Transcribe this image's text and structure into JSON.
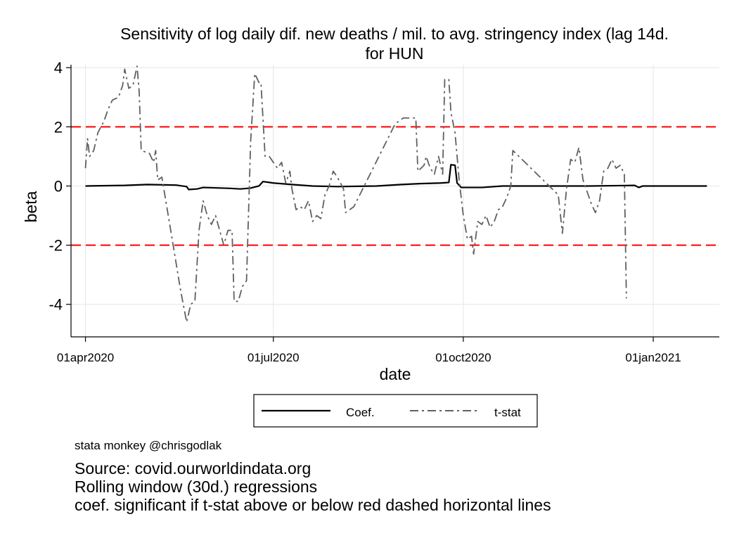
{
  "chart_data": {
    "type": "line",
    "title_lines": [
      "Sensitivity of log daily dif. new deaths / mil. to avg. stringency index (lag 14d.",
      "for HUN"
    ],
    "xlabel": "date",
    "ylabel": "beta",
    "x_tick_labels": [
      "01apr2020",
      "01jul2020",
      "01oct2020",
      "01jan2021"
    ],
    "x_ticks": [
      "2020-04-01",
      "2020-07-01",
      "2020-10-01",
      "2021-01-01"
    ],
    "xlim": [
      "2020-03-25",
      "2021-02-02"
    ],
    "y_ticks": [
      -4,
      -2,
      0,
      2,
      4
    ],
    "y_tick_labels": [
      "-4",
      "-2",
      "0",
      "2",
      "4"
    ],
    "ylim": [
      -5.1,
      4.1
    ],
    "grid": true,
    "reference_lines": [
      {
        "y": 2,
        "color": "#ff0000",
        "style": "dashed"
      },
      {
        "y": -2,
        "color": "#ff0000",
        "style": "dashed"
      }
    ],
    "legend": {
      "position": "bottom",
      "entries": [
        "Coef.",
        "t-stat"
      ]
    },
    "series": [
      {
        "name": "Coef.",
        "color": "#000000",
        "style": "solid",
        "points": [
          [
            "2020-04-01",
            0.0
          ],
          [
            "2020-04-20",
            0.02
          ],
          [
            "2020-05-01",
            0.05
          ],
          [
            "2020-05-15",
            0.03
          ],
          [
            "2020-05-20",
            -0.02
          ],
          [
            "2020-05-21",
            -0.12
          ],
          [
            "2020-05-25",
            -0.1
          ],
          [
            "2020-05-28",
            -0.05
          ],
          [
            "2020-06-10",
            -0.08
          ],
          [
            "2020-06-15",
            -0.1
          ],
          [
            "2020-06-20",
            -0.07
          ],
          [
            "2020-06-24",
            0.0
          ],
          [
            "2020-06-26",
            0.15
          ],
          [
            "2020-07-01",
            0.1
          ],
          [
            "2020-07-10",
            0.05
          ],
          [
            "2020-07-20",
            0.0
          ],
          [
            "2020-08-01",
            -0.02
          ],
          [
            "2020-08-20",
            0.0
          ],
          [
            "2020-09-01",
            0.05
          ],
          [
            "2020-09-10",
            0.08
          ],
          [
            "2020-09-20",
            0.1
          ],
          [
            "2020-09-24",
            0.12
          ],
          [
            "2020-09-25",
            0.72
          ],
          [
            "2020-09-27",
            0.7
          ],
          [
            "2020-09-28",
            0.1
          ],
          [
            "2020-09-30",
            -0.05
          ],
          [
            "2020-10-10",
            -0.05
          ],
          [
            "2020-10-20",
            0.0
          ],
          [
            "2020-11-01",
            0.0
          ],
          [
            "2020-12-01",
            0.0
          ],
          [
            "2020-12-23",
            0.02
          ],
          [
            "2020-12-25",
            -0.05
          ],
          [
            "2020-12-27",
            0.0
          ],
          [
            "2021-01-27",
            0.0
          ]
        ]
      },
      {
        "name": "t-stat",
        "color": "#606060",
        "style": "dashdot",
        "points": [
          [
            "2020-04-01",
            0.6
          ],
          [
            "2020-04-02",
            1.6
          ],
          [
            "2020-04-03",
            1.0
          ],
          [
            "2020-04-05",
            1.2
          ],
          [
            "2020-04-07",
            1.8
          ],
          [
            "2020-04-10",
            2.2
          ],
          [
            "2020-04-12",
            2.6
          ],
          [
            "2020-04-14",
            2.9
          ],
          [
            "2020-04-17",
            3.0
          ],
          [
            "2020-04-19",
            3.4
          ],
          [
            "2020-04-20",
            3.95
          ],
          [
            "2020-04-22",
            3.3
          ],
          [
            "2020-04-24",
            3.4
          ],
          [
            "2020-04-26",
            4.05
          ],
          [
            "2020-04-27",
            3.2
          ],
          [
            "2020-04-28",
            1.2
          ],
          [
            "2020-05-02",
            1.1
          ],
          [
            "2020-05-04",
            0.8
          ],
          [
            "2020-05-05",
            1.2
          ],
          [
            "2020-05-06",
            0.2
          ],
          [
            "2020-05-08",
            0.3
          ],
          [
            "2020-05-13",
            -1.8
          ],
          [
            "2020-05-17",
            -3.5
          ],
          [
            "2020-05-20",
            -4.6
          ],
          [
            "2020-05-22",
            -4.0
          ],
          [
            "2020-05-24",
            -3.9
          ],
          [
            "2020-05-26",
            -1.5
          ],
          [
            "2020-05-28",
            -0.5
          ],
          [
            "2020-05-30",
            -1.0
          ],
          [
            "2020-06-01",
            -1.3
          ],
          [
            "2020-06-03",
            -1.0
          ],
          [
            "2020-06-05",
            -1.5
          ],
          [
            "2020-06-07",
            -2.0
          ],
          [
            "2020-06-09",
            -1.5
          ],
          [
            "2020-06-11",
            -1.5
          ],
          [
            "2020-06-12",
            -3.9
          ],
          [
            "2020-06-14",
            -3.9
          ],
          [
            "2020-06-16",
            -3.4
          ],
          [
            "2020-06-18",
            -3.2
          ],
          [
            "2020-06-20",
            1.5
          ],
          [
            "2020-06-22",
            3.8
          ],
          [
            "2020-06-24",
            3.5
          ],
          [
            "2020-06-25",
            3.5
          ],
          [
            "2020-06-27",
            1.0
          ],
          [
            "2020-06-29",
            1.0
          ],
          [
            "2020-07-01",
            0.8
          ],
          [
            "2020-07-03",
            0.6
          ],
          [
            "2020-07-05",
            0.8
          ],
          [
            "2020-07-07",
            0.1
          ],
          [
            "2020-07-09",
            0.5
          ],
          [
            "2020-07-10",
            -0.1
          ],
          [
            "2020-07-12",
            -0.8
          ],
          [
            "2020-07-14",
            -0.7
          ],
          [
            "2020-07-16",
            -0.8
          ],
          [
            "2020-07-18",
            -0.5
          ],
          [
            "2020-07-20",
            -1.2
          ],
          [
            "2020-07-22",
            -1.0
          ],
          [
            "2020-07-24",
            -1.1
          ],
          [
            "2020-07-26",
            -0.3
          ],
          [
            "2020-07-28",
            0.0
          ],
          [
            "2020-07-30",
            0.5
          ],
          [
            "2020-08-01",
            0.3
          ],
          [
            "2020-08-04",
            -0.1
          ],
          [
            "2020-08-05",
            -0.9
          ],
          [
            "2020-08-09",
            -0.7
          ],
          [
            "2020-08-29",
            2.1
          ],
          [
            "2020-09-02",
            2.3
          ],
          [
            "2020-09-06",
            2.3
          ],
          [
            "2020-09-08",
            2.3
          ],
          [
            "2020-09-09",
            0.5
          ],
          [
            "2020-09-12",
            0.7
          ],
          [
            "2020-09-13",
            1.0
          ],
          [
            "2020-09-15",
            0.6
          ],
          [
            "2020-09-17",
            0.4
          ],
          [
            "2020-09-19",
            1.0
          ],
          [
            "2020-09-21",
            0.4
          ],
          [
            "2020-09-22",
            3.6
          ],
          [
            "2020-09-24",
            3.6
          ],
          [
            "2020-09-25",
            2.5
          ],
          [
            "2020-09-27",
            1.8
          ],
          [
            "2020-09-29",
            0.2
          ],
          [
            "2020-10-01",
            -1.0
          ],
          [
            "2020-10-03",
            -1.8
          ],
          [
            "2020-10-05",
            -1.7
          ],
          [
            "2020-10-06",
            -2.3
          ],
          [
            "2020-10-08",
            -1.2
          ],
          [
            "2020-10-10",
            -1.3
          ],
          [
            "2020-10-12",
            -1.0
          ],
          [
            "2020-10-14",
            -1.4
          ],
          [
            "2020-10-16",
            -1.2
          ],
          [
            "2020-10-18",
            -0.8
          ],
          [
            "2020-10-20",
            -0.7
          ],
          [
            "2020-10-22",
            -0.4
          ],
          [
            "2020-10-24",
            0.0
          ],
          [
            "2020-10-25",
            1.2
          ],
          [
            "2020-11-16",
            -0.3
          ],
          [
            "2020-11-18",
            -1.6
          ],
          [
            "2020-11-20",
            -0.1
          ],
          [
            "2020-11-22",
            0.9
          ],
          [
            "2020-11-24",
            0.8
          ],
          [
            "2020-11-26",
            1.3
          ],
          [
            "2020-11-28",
            0.2
          ],
          [
            "2020-11-30",
            -0.2
          ],
          [
            "2020-12-02",
            -0.6
          ],
          [
            "2020-12-04",
            -0.9
          ],
          [
            "2020-12-06",
            -0.5
          ],
          [
            "2020-12-08",
            0.5
          ],
          [
            "2020-12-10",
            0.6
          ],
          [
            "2020-12-12",
            0.9
          ],
          [
            "2020-12-14",
            0.6
          ],
          [
            "2020-12-16",
            0.7
          ],
          [
            "2020-12-18",
            0.4
          ],
          [
            "2020-12-19",
            -3.8
          ]
        ]
      }
    ]
  },
  "notes": {
    "credit": "stata monkey @chrisgodlak",
    "source": "Source: covid.ourworldindata.org",
    "window": "Rolling window (30d.) regressions",
    "significance": "coef. significant if t-stat above or below red dashed horizontal lines"
  }
}
